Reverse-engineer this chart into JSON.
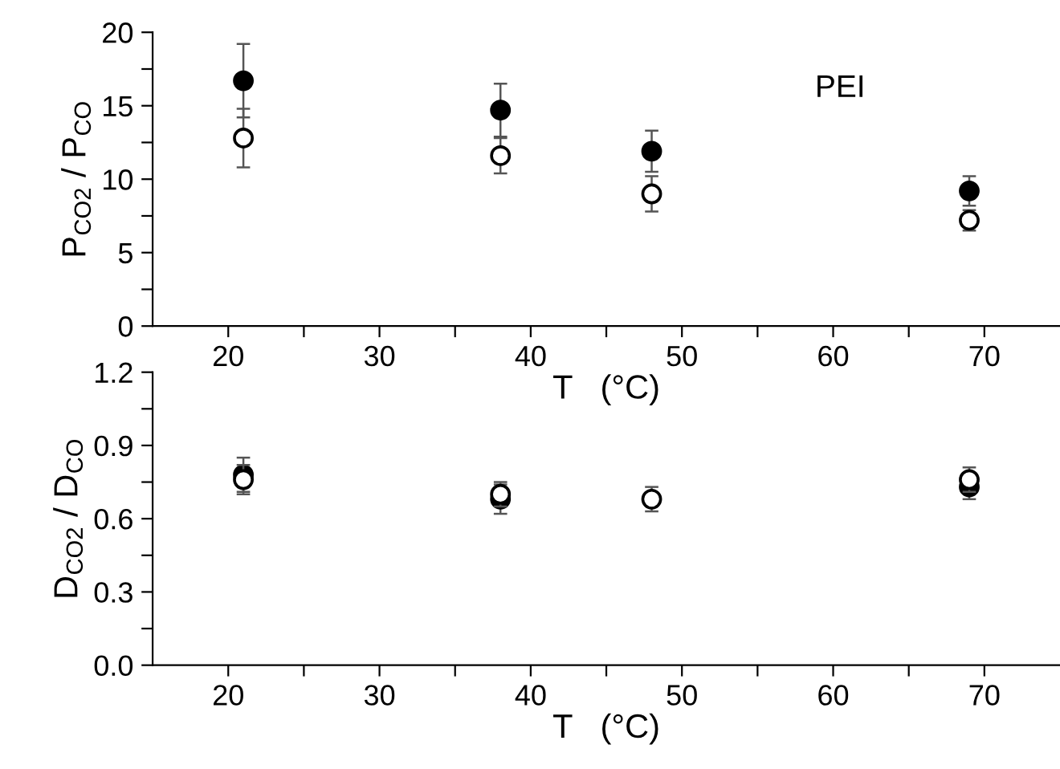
{
  "chart_data": [
    {
      "type": "scatter",
      "xlabel": "T   (°C)",
      "ylabel": "P$_{CO2}$ / P$_{CO}$",
      "annotations": [
        "PEI"
      ],
      "x": [
        21,
        38,
        48,
        69
      ],
      "xlim": [
        15,
        75
      ],
      "xticks": [
        20,
        {
          "value": 25,
          "label": null
        },
        30,
        {
          "value": 35,
          "label": null
        },
        40,
        {
          "value": 45,
          "label": null
        },
        50,
        {
          "value": 55,
          "label": null
        },
        60,
        {
          "value": 65,
          "label": null
        },
        70
      ],
      "ylim": [
        0,
        20
      ],
      "yticks": [
        0,
        {
          "value": 2.5,
          "label": null
        },
        5,
        {
          "value": 7.5,
          "label": null
        },
        10,
        {
          "value": 12.5,
          "label": null
        },
        15,
        {
          "value": 17.5,
          "label": null
        },
        20
      ],
      "grid": false,
      "legend": false,
      "marker": "circle",
      "series": [
        {
          "color": "#000000",
          "values": [
            16.7,
            14.7,
            11.9,
            9.2
          ],
          "errors": [
            2.5,
            1.8,
            1.4,
            1.0
          ]
        },
        {
          "color": "#ffffff",
          "values": [
            12.8,
            11.6,
            9.0,
            7.2
          ],
          "errors": [
            2.0,
            1.2,
            1.2,
            0.7
          ]
        }
      ]
    },
    {
      "type": "scatter",
      "xlabel": "T   (°C)",
      "ylabel": "D$_{CO2}$ / D$_{CO}$",
      "x": [
        21,
        38,
        48,
        69
      ],
      "xlim": [
        15,
        75
      ],
      "xticks": [
        20,
        {
          "value": 25,
          "label": null
        },
        30,
        {
          "value": 35,
          "label": null
        },
        40,
        {
          "value": 45,
          "label": null
        },
        50,
        {
          "value": 55,
          "label": null
        },
        60,
        {
          "value": 65,
          "label": null
        },
        70
      ],
      "ylim": [
        0,
        1.2
      ],
      "yticks": [
        {
          "value": 0,
          "label": "0.0"
        },
        {
          "value": 0.15,
          "label": null
        },
        0.3,
        {
          "value": 0.45,
          "label": null
        },
        0.6,
        {
          "value": 0.75,
          "label": null
        },
        0.9,
        {
          "value": 1.05,
          "label": null
        },
        1.2
      ],
      "grid": false,
      "legend": false,
      "marker": "circle",
      "series": [
        {
          "color": "#000000",
          "values": [
            0.78,
            0.68,
            null,
            0.73
          ],
          "errors": [
            0.07,
            0.06,
            null,
            0.05
          ]
        },
        {
          "color": "#ffffff",
          "values": [
            0.76,
            0.7,
            0.68,
            0.76
          ],
          "errors": [
            0.06,
            0.05,
            0.05,
            0.05
          ]
        }
      ]
    }
  ]
}
